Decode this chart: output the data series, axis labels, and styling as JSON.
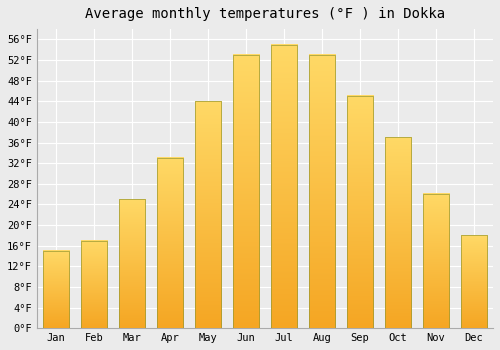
{
  "title": "Average monthly temperatures (°F ) in Dokka",
  "months": [
    "Jan",
    "Feb",
    "Mar",
    "Apr",
    "May",
    "Jun",
    "Jul",
    "Aug",
    "Sep",
    "Oct",
    "Nov",
    "Dec"
  ],
  "values": [
    15,
    17,
    25,
    33,
    44,
    53,
    55,
    53,
    45,
    37,
    26,
    18
  ],
  "bar_color_bottom": "#F5A623",
  "bar_color_top": "#FFD966",
  "bar_edge_color": "#888800",
  "ylim": [
    0,
    58
  ],
  "yticks": [
    0,
    4,
    8,
    12,
    16,
    20,
    24,
    28,
    32,
    36,
    40,
    44,
    48,
    52,
    56
  ],
  "ytick_labels": [
    "0°F",
    "4°F",
    "8°F",
    "12°F",
    "16°F",
    "20°F",
    "24°F",
    "28°F",
    "32°F",
    "36°F",
    "40°F",
    "44°F",
    "48°F",
    "52°F",
    "56°F"
  ],
  "background_color": "#ebebeb",
  "grid_color": "#ffffff",
  "title_fontsize": 10,
  "tick_fontsize": 7.5,
  "bar_width": 0.7,
  "figsize": [
    5.0,
    3.5
  ],
  "dpi": 100
}
